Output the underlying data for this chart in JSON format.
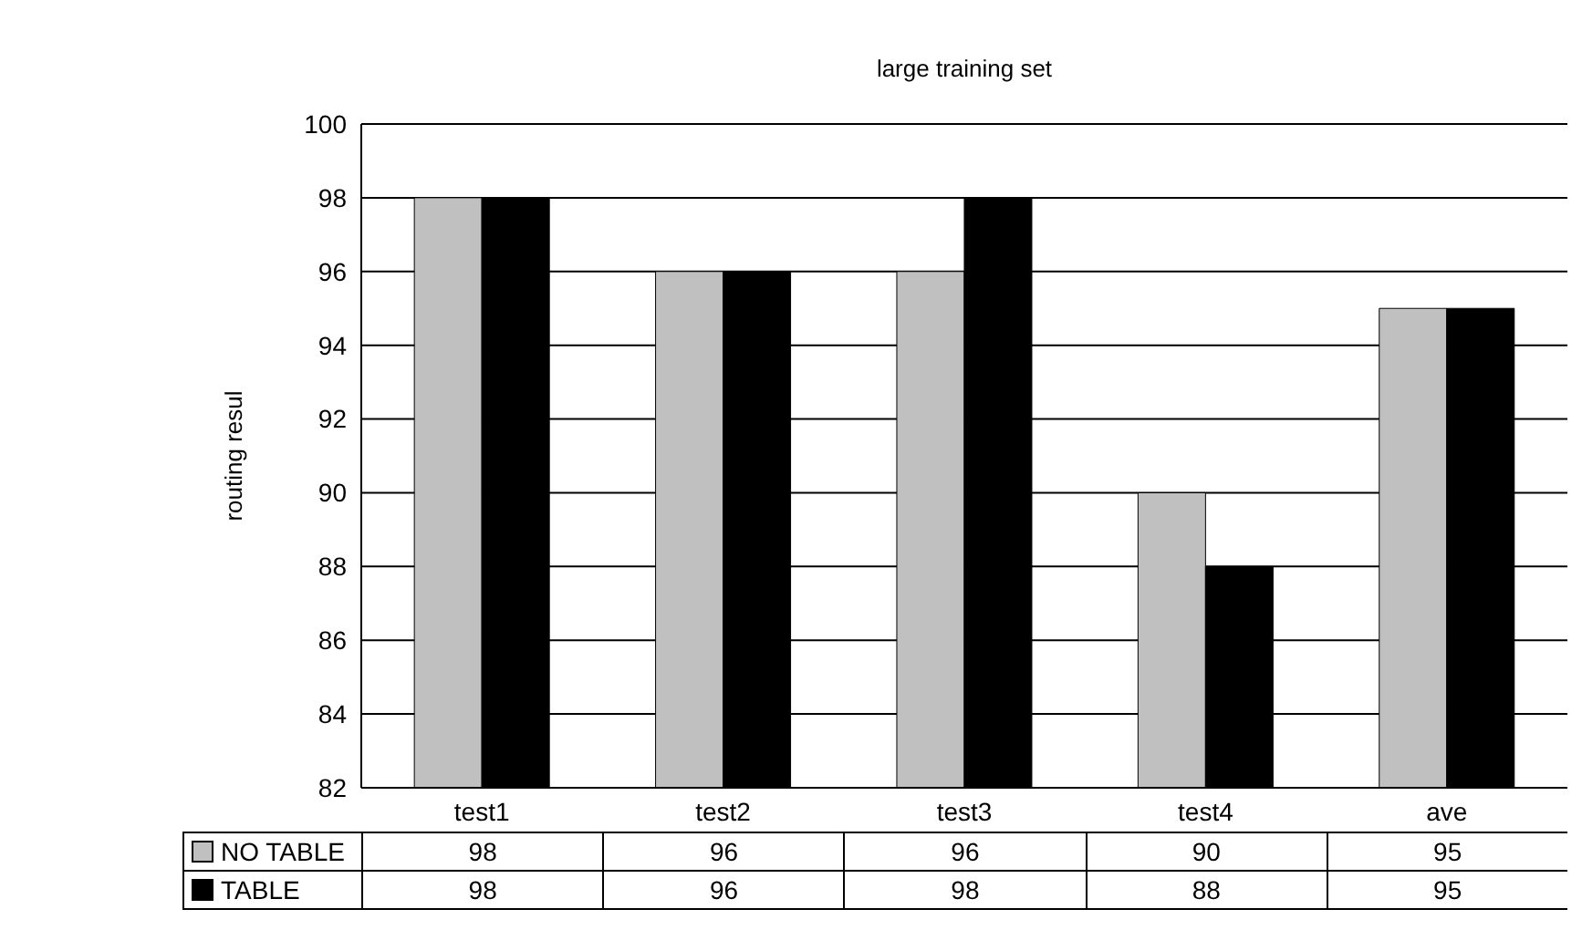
{
  "chart_data": {
    "type": "bar",
    "title": "large training set",
    "ylabel": "routing resul",
    "categories": [
      "test1",
      "test2",
      "test3",
      "test4",
      "ave"
    ],
    "series": [
      {
        "name": "NO TABLE",
        "color": "#c0c0c0",
        "values": [
          98,
          96,
          96,
          90,
          95
        ]
      },
      {
        "name": "TABLE",
        "color": "#000000",
        "values": [
          98,
          96,
          98,
          88,
          95
        ]
      }
    ],
    "ylim": [
      82,
      100
    ],
    "yticks": [
      82,
      84,
      86,
      88,
      90,
      92,
      94,
      96,
      98,
      100
    ],
    "grid": "y",
    "legend": "bottom left",
    "data_labels": true
  }
}
